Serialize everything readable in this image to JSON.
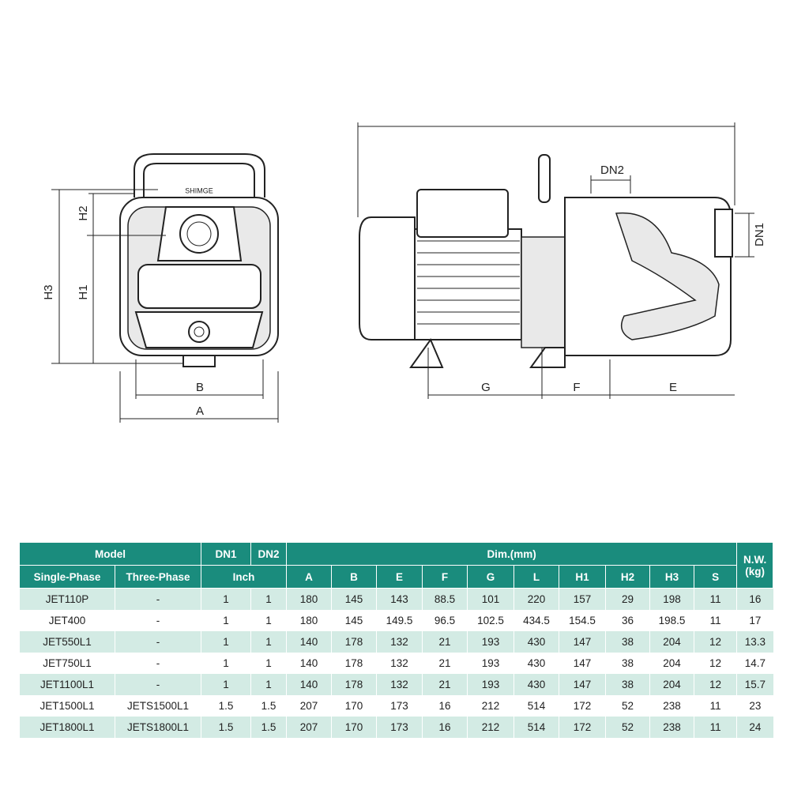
{
  "drawing": {
    "brand": "SHIMGE",
    "front": {
      "h3": "H3",
      "h1": "H1",
      "h2": "H2",
      "b": "B",
      "a": "A"
    },
    "side": {
      "dn2": "DN2",
      "dn1": "DN1",
      "g": "G",
      "f": "F",
      "e": "E"
    }
  },
  "table": {
    "header": {
      "model": "Model",
      "dn1": "DN1",
      "dn2": "DN2",
      "dim": "Dim.(mm)",
      "nw": "N.W. (kg)",
      "columns": [
        "Single-Phase",
        "Three-Phase",
        "Inch",
        "A",
        "B",
        "E",
        "F",
        "G",
        "L",
        "H1",
        "H2",
        "H3",
        "S"
      ]
    },
    "rows": [
      [
        "JET110P",
        "-",
        1,
        1,
        180,
        145,
        143,
        88.5,
        101,
        220,
        157,
        29,
        198,
        11,
        16
      ],
      [
        "JET400",
        "-",
        1,
        1,
        180,
        145,
        149.5,
        96.5,
        102.5,
        434.5,
        154.5,
        36,
        198.5,
        11,
        17
      ],
      [
        "JET550L1",
        "-",
        1,
        1,
        140,
        178,
        132,
        21,
        193,
        430,
        147,
        38,
        204,
        12,
        13.3
      ],
      [
        "JET750L1",
        "-",
        1,
        1,
        140,
        178,
        132,
        21,
        193,
        430,
        147,
        38,
        204,
        12,
        14.7
      ],
      [
        "JET1100L1",
        "-",
        1,
        1,
        140,
        178,
        132,
        21,
        193,
        430,
        147,
        38,
        204,
        12,
        15.7
      ],
      [
        "JET1500L1",
        "JETS1500L1",
        1.5,
        1.5,
        207,
        170,
        173,
        16,
        212,
        514,
        172,
        52,
        238,
        11,
        23
      ],
      [
        "JET1800L1",
        "JETS1800L1",
        1.5,
        1.5,
        207,
        170,
        173,
        16,
        212,
        514,
        172,
        52,
        238,
        11,
        24
      ]
    ]
  }
}
